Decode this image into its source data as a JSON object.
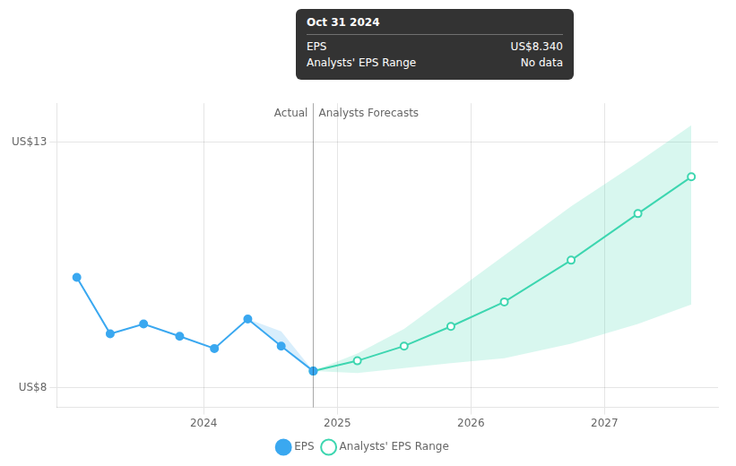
{
  "chart_data": {
    "type": "line",
    "series": [
      {
        "name": "EPS",
        "color": "#3aa8f0",
        "marker": "circle",
        "x": [
          2023.05,
          2023.3,
          2023.55,
          2023.82,
          2024.08,
          2024.33,
          2024.58,
          2024.82
        ],
        "values": [
          10.25,
          9.1,
          9.3,
          9.05,
          8.8,
          9.4,
          8.85,
          8.34
        ],
        "range_x": [
          2024.33,
          2024.58,
          2024.82
        ],
        "range_upper": [
          9.4,
          9.15,
          8.34
        ],
        "range_lower": [
          9.4,
          8.85,
          8.34
        ]
      },
      {
        "name": "Analysts' EPS Range",
        "color": "#3dd6b0",
        "marker": "circle",
        "x": [
          2024.82,
          2025.15,
          2025.5,
          2025.85,
          2026.25,
          2026.75,
          2027.25,
          2027.65
        ],
        "values": [
          8.34,
          8.55,
          8.85,
          9.25,
          9.75,
          10.6,
          11.55,
          12.3
        ],
        "upper": [
          8.34,
          8.7,
          9.2,
          9.9,
          10.7,
          11.7,
          12.6,
          13.35
        ],
        "lower": [
          8.34,
          8.3,
          8.4,
          8.5,
          8.6,
          8.9,
          9.3,
          9.7
        ]
      }
    ],
    "xlim": [
      2022.9,
      2027.85
    ],
    "xticks": [
      2024,
      2025,
      2026,
      2027
    ],
    "ylim": [
      7.6,
      13.8
    ],
    "yticks": [
      {
        "value": 8,
        "label": "US$8"
      },
      {
        "value": 13,
        "label": "US$13"
      }
    ],
    "grid": true,
    "legend": "bottom",
    "divider_x": 2024.82,
    "annotations": [
      "Actual",
      "Analysts Forecasts"
    ],
    "tooltip": {
      "title": "Oct 31 2024",
      "rows": [
        {
          "label": "EPS",
          "value": "US$8.340"
        },
        {
          "label": "Analysts' EPS Range",
          "value": "No data"
        }
      ]
    }
  }
}
